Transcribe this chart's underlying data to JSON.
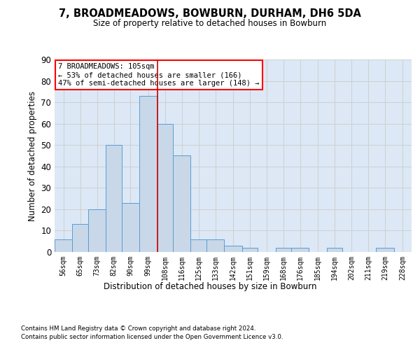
{
  "title": "7, BROADMEADOWS, BOWBURN, DURHAM, DH6 5DA",
  "subtitle": "Size of property relative to detached houses in Bowburn",
  "xlabel": "Distribution of detached houses by size in Bowburn",
  "ylabel": "Number of detached properties",
  "bar_color": "#c8d8e8",
  "bar_edge_color": "#5b9bd5",
  "background_color": "#ffffff",
  "grid_color": "#cccccc",
  "annotation_text": "7 BROADMEADOWS: 105sqm\n← 53% of detached houses are smaller (166)\n47% of semi-detached houses are larger (148) →",
  "vline_x": 108,
  "vline_color": "#cc0000",
  "categories": [
    "56sqm",
    "65sqm",
    "73sqm",
    "82sqm",
    "90sqm",
    "99sqm",
    "108sqm",
    "116sqm",
    "125sqm",
    "133sqm",
    "142sqm",
    "151sqm",
    "159sqm",
    "168sqm",
    "176sqm",
    "185sqm",
    "194sqm",
    "202sqm",
    "211sqm",
    "219sqm",
    "228sqm"
  ],
  "bin_edges": [
    56,
    65,
    73,
    82,
    90,
    99,
    108,
    116,
    125,
    133,
    142,
    151,
    159,
    168,
    176,
    185,
    194,
    202,
    211,
    219,
    228,
    237
  ],
  "values": [
    6,
    13,
    20,
    50,
    23,
    73,
    60,
    45,
    6,
    6,
    3,
    2,
    0,
    2,
    2,
    0,
    2,
    0,
    0,
    2,
    0
  ],
  "ylim": [
    0,
    90
  ],
  "yticks": [
    0,
    10,
    20,
    30,
    40,
    50,
    60,
    70,
    80,
    90
  ],
  "footnote1": "Contains HM Land Registry data © Crown copyright and database right 2024.",
  "footnote2": "Contains public sector information licensed under the Open Government Licence v3.0."
}
